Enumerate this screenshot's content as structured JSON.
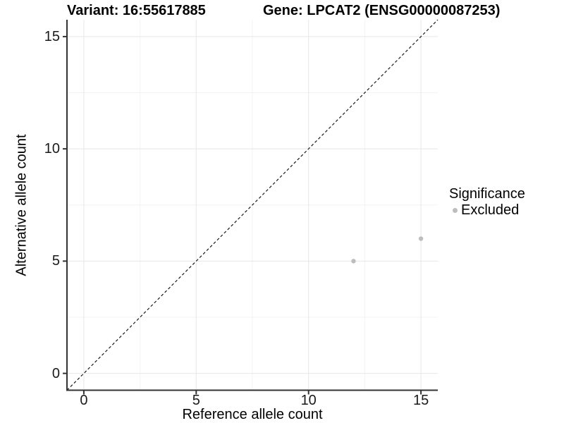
{
  "colors": {
    "background": "#ffffff",
    "axis_line": "#333333",
    "tick_text": "#1a1a1a",
    "grid_major": "#e7e7e7",
    "grid_minor": "#f3f3f3",
    "point": "#bdbdbd",
    "identity_line": "#1a1a1a"
  },
  "chart_data": {
    "type": "scatter",
    "title_left": "Variant: 16:55617885",
    "title_right": "Gene: LPCAT2 (ENSG00000087253)",
    "xlabel": "Reference allele count",
    "ylabel": "Alternative allele count",
    "xlim": [
      -0.75,
      15.75
    ],
    "ylim": [
      -0.75,
      15.75
    ],
    "x_major_ticks": [
      0,
      5,
      10,
      15
    ],
    "y_major_ticks": [
      0,
      5,
      10,
      15
    ],
    "x_minor_ticks": [
      2.5,
      7.5,
      12.5
    ],
    "y_minor_ticks": [
      2.5,
      7.5,
      12.5
    ],
    "grid": true,
    "identity_line": {
      "slope": 1,
      "intercept": 0,
      "style": "dashed",
      "color": "#1a1a1a"
    },
    "series": [
      {
        "name": "Excluded",
        "color": "#bdbdbd",
        "points": [
          {
            "x": 12,
            "y": 5
          },
          {
            "x": 15,
            "y": 6
          }
        ]
      }
    ],
    "legend": {
      "title": "Significance",
      "position": "right",
      "entries": [
        {
          "label": "Excluded",
          "color": "#bdbdbd"
        }
      ]
    }
  }
}
